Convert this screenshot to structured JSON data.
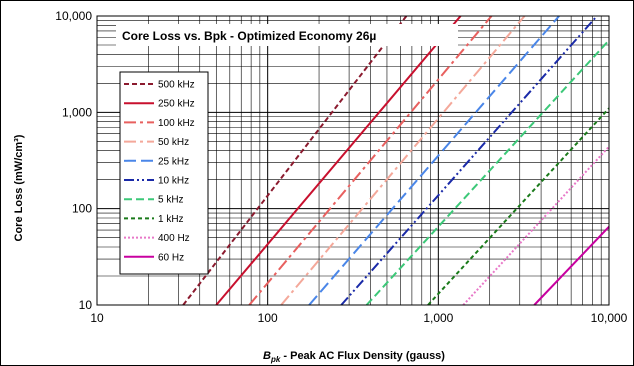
{
  "chart_data": {
    "type": "line",
    "title": "Core Loss vs. Bpk - Optimized Economy  26µ",
    "xlabel_main": "B",
    "xlabel_sub": "pk",
    "xlabel_rest": " - Peak AC Flux Density (gauss)",
    "ylabel": "Core Loss (mW/cm³)",
    "x_scale": "log",
    "y_scale": "log",
    "xlim": [
      10,
      10000
    ],
    "ylim": [
      10,
      10000
    ],
    "x_ticks": [
      "10",
      "100",
      "1,000",
      "10,000"
    ],
    "y_ticks": [
      "10",
      "100",
      "1,000",
      "10,000"
    ],
    "grid": true,
    "legend_position": "left",
    "series": [
      {
        "name": "500 kHz",
        "color": "#8b1a2e",
        "dash": "5,3",
        "x": [
          32,
          650
        ],
        "y": [
          10,
          10000
        ]
      },
      {
        "name": "250 kHz",
        "color": "#c8102e",
        "dash": "",
        "x": [
          50,
          1350
        ],
        "y": [
          10,
          10000
        ]
      },
      {
        "name": "100 kHz",
        "color": "#e8605f",
        "dash": "12,4,3,4",
        "x": [
          78,
          2050
        ],
        "y": [
          10,
          10000
        ]
      },
      {
        "name": "50 kHz",
        "color": "#f4a89a",
        "dash": "12,4,3,4",
        "x": [
          120,
          3200
        ],
        "y": [
          10,
          10000
        ]
      },
      {
        "name": "25 kHz",
        "color": "#4a86e8",
        "dash": "12,5",
        "x": [
          175,
          5100
        ],
        "y": [
          10,
          10000
        ]
      },
      {
        "name": "10 kHz",
        "color": "#1a2aa8",
        "dash": "10,3,2,3,2,3",
        "x": [
          270,
          8500
        ],
        "y": [
          10,
          10000
        ]
      },
      {
        "name": "5 kHz",
        "color": "#3cc878",
        "dash": "8,4",
        "x": [
          380,
          10000
        ],
        "y": [
          10,
          5600
        ]
      },
      {
        "name": "1 kHz",
        "color": "#1a7a1a",
        "dash": "4,3",
        "x": [
          870,
          10000
        ],
        "y": [
          10,
          1100
        ]
      },
      {
        "name": "400 Hz",
        "color": "#e878c8",
        "dash": "2,2",
        "x": [
          1400,
          10000
        ],
        "y": [
          10,
          440
        ]
      },
      {
        "name": "60 Hz",
        "color": "#c800a0",
        "dash": "",
        "x": [
          3650,
          10000
        ],
        "y": [
          10,
          65
        ]
      }
    ]
  }
}
